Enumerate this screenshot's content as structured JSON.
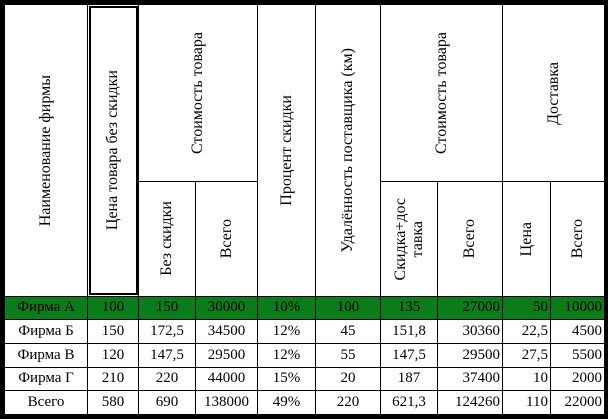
{
  "headers": {
    "company": "Наименование фирмы",
    "price_no_discount": "Цена товара без скидки",
    "cost_group": "Стоимость товара",
    "cost_no_discount": "Без скидки",
    "cost_total": "Всего",
    "discount_percent": "Процент скидки",
    "distance": "Удалённость поставщика (км)",
    "cost_group2": "Стоимость товара",
    "discount_delivery_line1": "Скидка+дос",
    "discount_delivery_line2": "тавка",
    "cost_total2": "Всего",
    "delivery_group": "Доставка",
    "delivery_price": "Цена",
    "delivery_total": "Всего"
  },
  "rows": [
    {
      "name": "Фирма А",
      "price": "100",
      "cost_nd": "150",
      "cost_total": "30000",
      "pct": "10%",
      "dist": "100",
      "disc_deliv": "135",
      "total2": "27000",
      "deliv_price": "50",
      "deliv_total": "10000",
      "highlight": true
    },
    {
      "name": "Фирма Б",
      "price": "150",
      "cost_nd": "172,5",
      "cost_total": "34500",
      "pct": "12%",
      "dist": "45",
      "disc_deliv": "151,8",
      "total2": "30360",
      "deliv_price": "22,5",
      "deliv_total": "4500"
    },
    {
      "name": "Фирма В",
      "price": "120",
      "cost_nd": "147,5",
      "cost_total": "29500",
      "pct": "12%",
      "dist": "55",
      "disc_deliv": "147,5",
      "total2": "29500",
      "deliv_price": "27,5",
      "deliv_total": "5500"
    },
    {
      "name": "Фирма Г",
      "price": "210",
      "cost_nd": "220",
      "cost_total": "44000",
      "pct": "15%",
      "dist": "20",
      "disc_deliv": "187",
      "total2": "37400",
      "deliv_price": "10",
      "deliv_total": "2000"
    },
    {
      "name": "Всего",
      "price": "580",
      "cost_nd": "690",
      "cost_total": "138000",
      "pct": "49%",
      "dist": "220",
      "disc_deliv": "621,3",
      "total2": "124260",
      "deliv_price": "110",
      "deliv_total": "22000"
    }
  ],
  "colors": {
    "highlight_row": "#0a7d1a",
    "border": "#000000"
  }
}
